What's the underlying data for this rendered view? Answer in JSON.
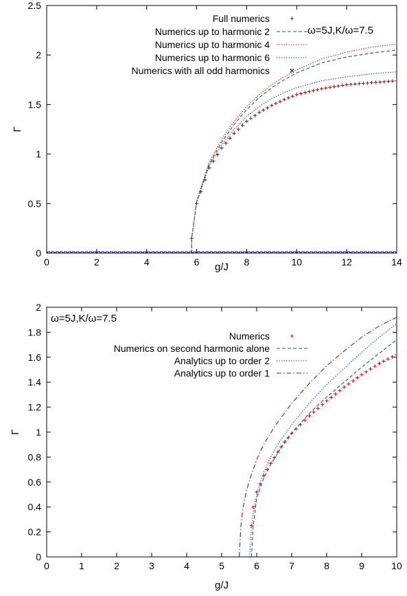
{
  "chart_data": [
    {
      "type": "line",
      "xlabel": "g/J",
      "ylabel": "Γ",
      "xlim": [
        0,
        14
      ],
      "ylim": [
        0,
        2.5
      ],
      "xticks": [
        "0",
        "2",
        "4",
        "6",
        "8",
        "10",
        "12",
        "14"
      ],
      "yticks": [
        "0",
        "0.5",
        "1",
        "1.5",
        "2",
        "2.5"
      ],
      "annotation": "ω=5J,K/ω=7.5",
      "legend_position": "top-right",
      "grid": false,
      "series": [
        {
          "name": "Full numerics",
          "style": "plus",
          "color": "#8b1a1a",
          "x": [
            5.8,
            6.0,
            6.5,
            7.0,
            7.5,
            8.0,
            8.5,
            9.0,
            9.5,
            10.0,
            11.0,
            12.0,
            13.0,
            14.0
          ],
          "y": [
            0.15,
            0.5,
            0.86,
            1.06,
            1.21,
            1.33,
            1.42,
            1.49,
            1.55,
            1.6,
            1.66,
            1.7,
            1.72,
            1.74
          ]
        },
        {
          "name": "Numerics up to harmonic 2",
          "style": "dashed",
          "color": "#1f5f4f",
          "x": [
            5.8,
            6.0,
            6.5,
            7.0,
            7.5,
            8.0,
            8.5,
            9.0,
            9.5,
            10.0,
            11.0,
            12.0,
            13.0,
            14.0
          ],
          "y": [
            0.15,
            0.52,
            0.9,
            1.12,
            1.3,
            1.45,
            1.57,
            1.67,
            1.75,
            1.82,
            1.92,
            1.98,
            2.02,
            2.05
          ]
        },
        {
          "name": "Numerics up to harmonic 4",
          "style": "dotted",
          "color": "#cc2200",
          "x": [
            5.8,
            6.0,
            6.5,
            7.0,
            7.5,
            8.0,
            8.5,
            9.0,
            9.5,
            10.0,
            11.0,
            12.0,
            13.0,
            14.0
          ],
          "y": [
            0.15,
            0.53,
            0.92,
            1.15,
            1.33,
            1.48,
            1.6,
            1.7,
            1.78,
            1.85,
            1.96,
            2.03,
            2.08,
            2.11
          ]
        },
        {
          "name": "Numerics up to harmonic 6",
          "style": "dotted",
          "color": "#2244cc",
          "x": [
            5.8,
            6.0,
            6.5,
            7.0,
            7.5,
            8.0,
            8.5,
            9.0,
            9.5,
            10.0,
            11.0,
            12.0,
            13.0,
            14.0
          ],
          "y": [
            0.15,
            0.51,
            0.88,
            1.09,
            1.25,
            1.38,
            1.48,
            1.56,
            1.62,
            1.67,
            1.74,
            1.78,
            1.81,
            1.83
          ]
        },
        {
          "name": "Numerics with all odd harmonics",
          "style": "cross",
          "color": "#000080",
          "x": [
            0,
            0.5,
            1,
            1.5,
            2,
            2.5,
            3,
            3.5,
            4,
            4.5,
            5,
            5.5,
            6,
            6.5,
            7,
            7.5,
            8,
            8.5,
            9,
            9.5,
            10,
            10.5,
            11,
            11.5,
            12,
            12.5,
            13,
            13.5,
            14
          ],
          "y": [
            0,
            0,
            0,
            0,
            0,
            0,
            0,
            0,
            0,
            0,
            0,
            0,
            0,
            0,
            0,
            0,
            0,
            0,
            0,
            0,
            0,
            0,
            0,
            0,
            0,
            0,
            0,
            0,
            0
          ]
        }
      ]
    },
    {
      "type": "line",
      "xlabel": "g/J",
      "ylabel": "Γ",
      "xlim": [
        0,
        10
      ],
      "ylim": [
        0,
        2
      ],
      "xticks": [
        "0",
        "1",
        "2",
        "3",
        "4",
        "5",
        "6",
        "7",
        "8",
        "9",
        "10"
      ],
      "yticks": [
        "0",
        "0.2",
        "0.4",
        "0.6",
        "0.8",
        "1",
        "1.2",
        "1.4",
        "1.6",
        "1.8",
        "2"
      ],
      "annotation": "ω=5J,K/ω=7.5",
      "legend_position": "top-right",
      "grid": false,
      "series": [
        {
          "name": "Numerics",
          "style": "plus",
          "color": "#ff0000",
          "x": [
            5.85,
            5.9,
            6.0,
            6.2,
            6.4,
            6.6,
            6.8,
            7.0,
            7.5,
            8.0,
            8.5,
            9.0,
            9.5,
            10.0
          ],
          "y": [
            0.25,
            0.4,
            0.52,
            0.65,
            0.75,
            0.84,
            0.92,
            0.99,
            1.13,
            1.25,
            1.36,
            1.46,
            1.55,
            1.62
          ]
        },
        {
          "name": "Numerics on second harmonic alone",
          "style": "dashed",
          "color": "#1f5f4f",
          "x": [
            5.85,
            5.9,
            6.0,
            6.2,
            6.4,
            6.6,
            6.8,
            7.0,
            7.5,
            8.0,
            8.5,
            9.0,
            9.5,
            10.0
          ],
          "y": [
            0.0,
            0.25,
            0.47,
            0.63,
            0.74,
            0.83,
            0.92,
            0.99,
            1.15,
            1.28,
            1.4,
            1.52,
            1.63,
            1.74
          ]
        },
        {
          "name": "Analytics up to order 2",
          "style": "dotted",
          "color": "#2244cc",
          "x": [
            5.8,
            5.85,
            5.9,
            6.0,
            6.2,
            6.4,
            6.6,
            6.8,
            7.0,
            7.5,
            8.0,
            8.5,
            9.0,
            9.5,
            10.0
          ],
          "y": [
            0.0,
            0.25,
            0.35,
            0.5,
            0.68,
            0.8,
            0.9,
            0.98,
            1.06,
            1.23,
            1.38,
            1.51,
            1.64,
            1.76,
            1.87
          ]
        },
        {
          "name": "Analytics up to order 1",
          "style": "dashdot",
          "color": "#8b1a1a",
          "x": [
            5.5,
            5.55,
            5.6,
            5.7,
            5.8,
            6.0,
            6.2,
            6.5,
            7.0,
            7.5,
            8.0,
            8.5,
            9.0,
            9.5,
            10.0
          ],
          "y": [
            0.0,
            0.25,
            0.38,
            0.52,
            0.62,
            0.78,
            0.9,
            1.04,
            1.23,
            1.39,
            1.53,
            1.65,
            1.76,
            1.85,
            1.92
          ]
        }
      ]
    }
  ]
}
